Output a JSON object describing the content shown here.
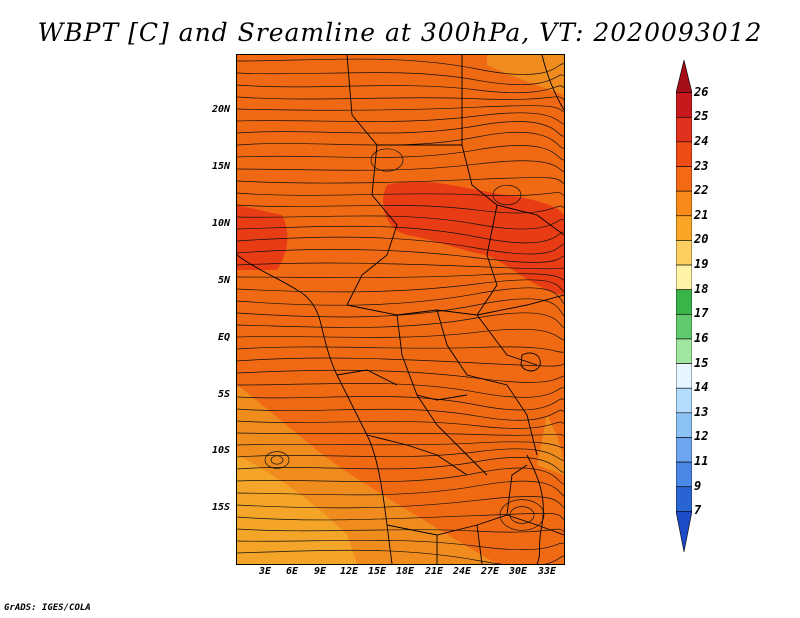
{
  "title": "WBPT [C] and Sreamline at 300hPa, VT: 2020093012",
  "credit": "GrADS: IGES/COLA",
  "map": {
    "lat_labels": [
      "20N",
      "15N",
      "10N",
      "5N",
      "EQ",
      "5S",
      "10S",
      "15S"
    ],
    "lon_labels": [
      "3E",
      "6E",
      "9E",
      "12E",
      "15E",
      "18E",
      "21E",
      "24E",
      "27E",
      "30E",
      "33E"
    ],
    "field_colors": {
      "base": "#f06a14",
      "warm": "#e83c14",
      "cool": "#f08c1e",
      "coolest": "#f4a528"
    }
  },
  "colorbar": {
    "levels": [
      "26",
      "25",
      "24",
      "23",
      "22",
      "21",
      "20",
      "19",
      "18",
      "17",
      "16",
      "15",
      "14",
      "13",
      "12",
      "11",
      "9",
      "7"
    ],
    "colors": [
      "#a50f15",
      "#c8171d",
      "#e0301e",
      "#f04d16",
      "#f46a14",
      "#f78a1a",
      "#fba527",
      "#fdcf60",
      "#fff3a6",
      "#38b449",
      "#63c96f",
      "#a0e6a0",
      "#e6f5ff",
      "#b4dcff",
      "#8cc3f5",
      "#6ea5f0",
      "#4b87e6",
      "#2864d2",
      "#1e4bc8"
    ]
  }
}
